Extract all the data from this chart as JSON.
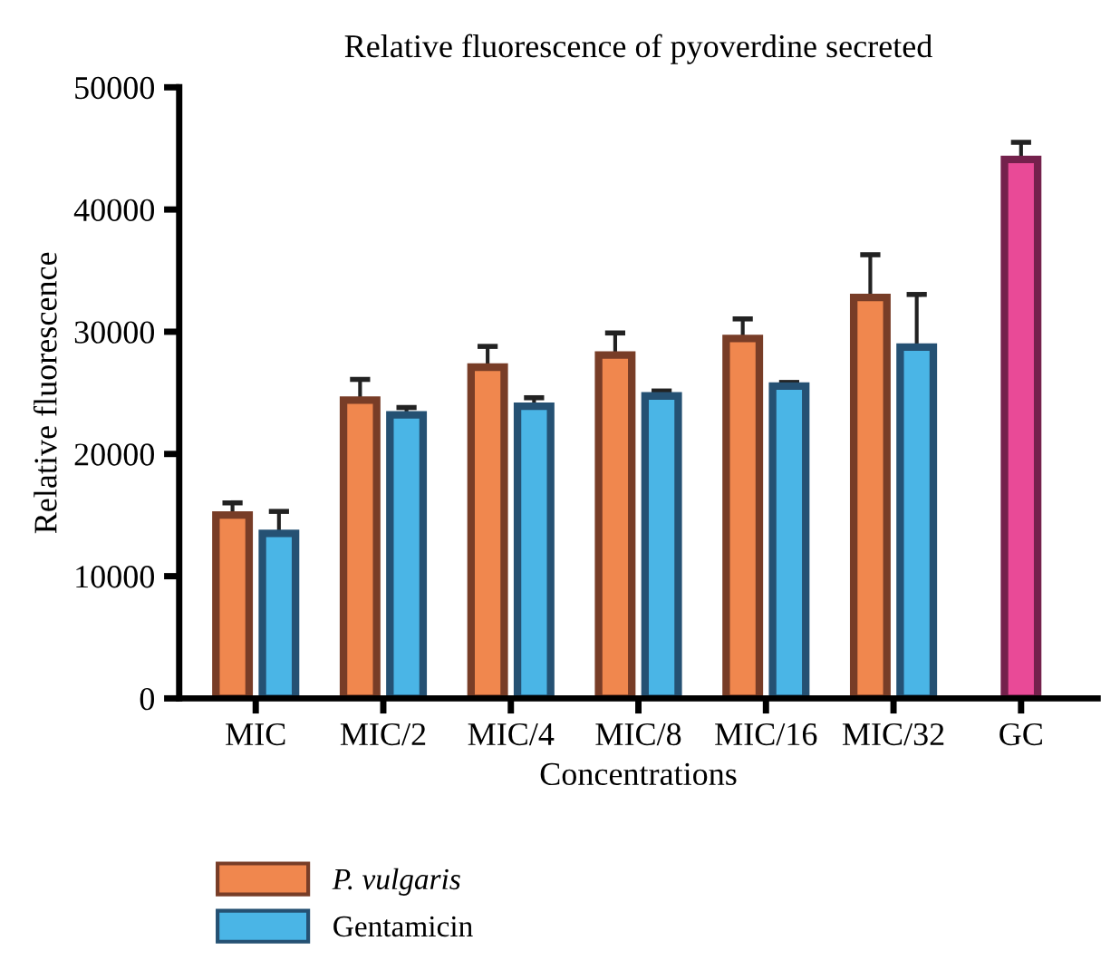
{
  "chart_data": {
    "type": "bar",
    "title": "Relative fluorescence of pyoverdine secreted",
    "xlabel": "Concentrations",
    "ylabel": "Relative fluorescence",
    "categories": [
      "MIC",
      "MIC/2",
      "MIC/4",
      "MIC/8",
      "MIC/16",
      "MIC/32",
      "GC"
    ],
    "series": [
      {
        "name": "P. vulgaris",
        "color": "#f0874e",
        "values": [
          15000,
          24400,
          27100,
          28100,
          29450,
          32800,
          null
        ],
        "errors": [
          1000,
          1700,
          1700,
          1800,
          1600,
          3500,
          null
        ]
      },
      {
        "name": "Gentamicin",
        "color": "#4ab5e6",
        "values": [
          13500,
          23200,
          23900,
          24750,
          25550,
          28750,
          null
        ],
        "errors": [
          1800,
          600,
          700,
          400,
          300,
          4300,
          null
        ]
      },
      {
        "color": "#e94a97",
        "values": [
          null,
          null,
          null,
          null,
          null,
          null,
          44100
        ],
        "errors": [
          null,
          null,
          null,
          null,
          null,
          null,
          1400
        ]
      }
    ],
    "ylim": [
      0,
      50000
    ],
    "yticks": [
      0,
      10000,
      20000,
      30000,
      40000,
      50000
    ],
    "grid": false,
    "legend": "bottom left"
  }
}
